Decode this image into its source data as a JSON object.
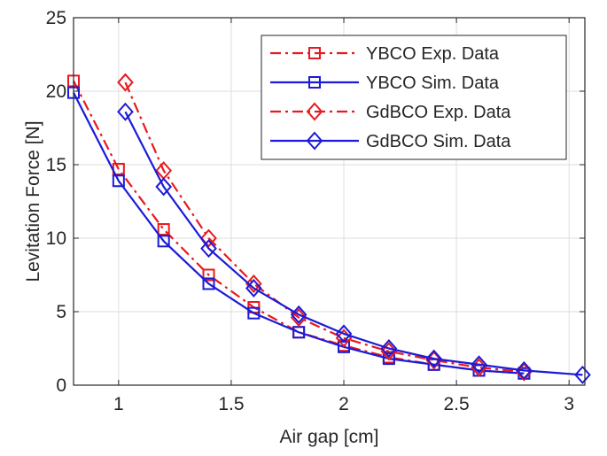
{
  "chart_data": {
    "type": "line",
    "xlabel": "Air gap [cm]",
    "ylabel": "Levitation Force [N]",
    "xlim": [
      0.8,
      3.07
    ],
    "ylim": [
      0,
      25
    ],
    "xticks": [
      1,
      1.5,
      2,
      2.5,
      3
    ],
    "xtick_labels": [
      "1",
      "1.5",
      "2",
      "2.5",
      "3"
    ],
    "yticks": [
      0,
      5,
      10,
      15,
      20,
      25
    ],
    "ytick_labels": [
      "0",
      "5",
      "10",
      "15",
      "20",
      "25"
    ],
    "grid": true,
    "legend_position": "top-right",
    "series": [
      {
        "name": "YBCO Exp. Data",
        "color": "#e8191e",
        "line_style": "dash-dot",
        "marker": "square",
        "x": [
          0.8,
          1.0,
          1.2,
          1.4,
          1.6,
          1.8,
          2.0,
          2.2,
          2.4,
          2.6,
          2.8
        ],
        "y": [
          20.7,
          14.7,
          10.6,
          7.5,
          5.3,
          3.6,
          2.7,
          1.9,
          1.4,
          1.0,
          0.8
        ]
      },
      {
        "name": "YBCO Sim. Data",
        "color": "#1b1bd8",
        "line_style": "solid",
        "marker": "square",
        "x": [
          0.8,
          1.0,
          1.2,
          1.4,
          1.6,
          1.8,
          2.0,
          2.2,
          2.4,
          2.6,
          2.8
        ],
        "y": [
          19.9,
          13.9,
          9.8,
          6.9,
          4.9,
          3.6,
          2.6,
          1.8,
          1.4,
          1.0,
          0.8
        ]
      },
      {
        "name": "GdBCO Exp. Data",
        "color": "#e8191e",
        "line_style": "dash-dot",
        "marker": "diamond",
        "x": [
          1.03,
          1.2,
          1.4,
          1.6,
          1.8,
          2.0,
          2.2,
          2.4,
          2.6,
          2.8
        ],
        "y": [
          20.6,
          14.6,
          10.0,
          6.9,
          4.6,
          3.2,
          2.3,
          1.7,
          1.2,
          0.9
        ]
      },
      {
        "name": "GdBCO Sim. Data",
        "color": "#1b1bd8",
        "line_style": "solid",
        "marker": "diamond",
        "x": [
          1.03,
          1.2,
          1.4,
          1.6,
          1.8,
          2.0,
          2.2,
          2.4,
          2.6,
          2.8,
          3.06
        ],
        "y": [
          18.6,
          13.5,
          9.3,
          6.6,
          4.8,
          3.5,
          2.5,
          1.8,
          1.4,
          1.0,
          0.7
        ]
      }
    ]
  }
}
